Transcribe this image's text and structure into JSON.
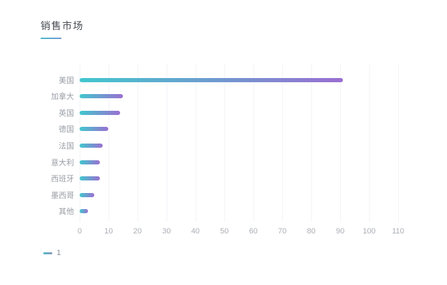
{
  "chart_data": {
    "type": "bar",
    "orientation": "horizontal",
    "title": "销售市场",
    "categories": [
      "美国",
      "加拿大",
      "英国",
      "德国",
      "法国",
      "意大利",
      "西班牙",
      "墨西哥",
      "其他"
    ],
    "values": [
      91,
      15,
      14,
      10,
      8,
      7,
      7,
      5,
      3
    ],
    "x_ticks": [
      "0",
      "10",
      "20",
      "30",
      "40",
      "50",
      "60",
      "70",
      "80",
      "90",
      "100",
      "110"
    ],
    "xlim": [
      0,
      110
    ],
    "xlabel": "",
    "ylabel": "",
    "grid": "vertical gridlines every 10, very light",
    "legend": {
      "label": "1",
      "position": "bottom-left"
    },
    "colors": {
      "bar_gradient_start": "#41c7cd",
      "bar_gradient_end": "#9a6fd2",
      "title_underline_start": "#4ab9cb",
      "title_underline_end": "#6f97d4",
      "legend_marker_start": "#54b9ca",
      "legend_marker_end": "#8a9cc0",
      "gridline": "#f2f3f7",
      "category_label": "#999ea5",
      "tick_label": "#abaeb5",
      "title_text": "#454b52"
    }
  }
}
